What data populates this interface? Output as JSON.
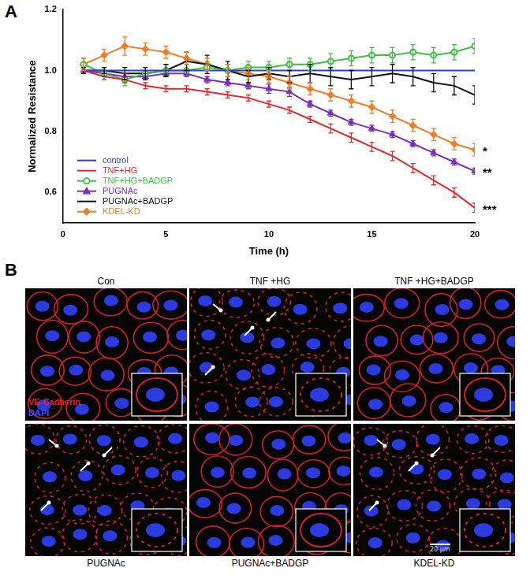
{
  "chart_data": {
    "type": "line",
    "x_label": "Time (h)",
    "y_label": "Normalized Resistance",
    "x": [
      1,
      2,
      3,
      4,
      5,
      6,
      7,
      8,
      9,
      10,
      11,
      12,
      13,
      14,
      15,
      16,
      17,
      18,
      19,
      20
    ],
    "xlim": [
      0,
      20
    ],
    "xticks": [
      0,
      5,
      10,
      15,
      20
    ],
    "ylim": [
      0.5,
      1.2
    ],
    "yticks": [
      0.6,
      0.8,
      {
        "value": 1,
        "label": "1.0"
      },
      1.2
    ],
    "grid": false,
    "legend": "lower left",
    "series": [
      {
        "name": "control",
        "color": "#2a3fd6",
        "marker": "none",
        "values": [
          1.0,
          1.0,
          1.0,
          1.0,
          1.0,
          1.0,
          1.0,
          1.0,
          1.0,
          1.0,
          1.0,
          1.0,
          1.0,
          1.0,
          1.0,
          1.0,
          1.0,
          1.0,
          1.0,
          1.0
        ],
        "errors": [
          0,
          0,
          0,
          0,
          0,
          0,
          0,
          0,
          0,
          0,
          0,
          0,
          0,
          0,
          0,
          0,
          0,
          0,
          0,
          0
        ]
      },
      {
        "name": "TNF+HG",
        "color": "#e8262a",
        "marker": "none",
        "annotation": "***",
        "values": [
          1.0,
          0.98,
          0.97,
          0.95,
          0.94,
          0.94,
          0.93,
          0.92,
          0.91,
          0.89,
          0.87,
          0.84,
          0.81,
          0.78,
          0.75,
          0.72,
          0.68,
          0.64,
          0.6,
          0.55
        ],
        "errors": [
          0.01,
          0.01,
          0.01,
          0.01,
          0.01,
          0.01,
          0.01,
          0.01,
          0.01,
          0.01,
          0.01,
          0.01,
          0.015,
          0.015,
          0.015,
          0.015,
          0.015,
          0.015,
          0.015,
          0.015
        ]
      },
      {
        "name": "TNF+HG+BADGP",
        "color": "#3fbf3f",
        "marker": "circle_open",
        "values": [
          1.02,
          0.99,
          0.97,
          0.99,
          1.0,
          1.0,
          1.01,
          1.0,
          1.01,
          1.01,
          1.02,
          1.02,
          1.03,
          1.04,
          1.05,
          1.05,
          1.06,
          1.05,
          1.06,
          1.08
        ],
        "errors": [
          0.02,
          0.02,
          0.02,
          0.02,
          0.02,
          0.02,
          0.02,
          0.02,
          0.02,
          0.02,
          0.02,
          0.02,
          0.025,
          0.025,
          0.025,
          0.025,
          0.025,
          0.025,
          0.025,
          0.025
        ]
      },
      {
        "name": "PUGNAc",
        "color": "#7b2fbe",
        "marker": "triangle",
        "annotation": "**",
        "values": [
          1.0,
          0.99,
          0.98,
          0.98,
          0.99,
          0.99,
          0.97,
          0.96,
          0.95,
          0.94,
          0.93,
          0.89,
          0.86,
          0.83,
          0.81,
          0.79,
          0.76,
          0.73,
          0.7,
          0.67
        ],
        "errors": [
          0.01,
          0.01,
          0.01,
          0.01,
          0.01,
          0.01,
          0.01,
          0.01,
          0.01,
          0.015,
          0.015,
          0.01,
          0.01,
          0.01,
          0.01,
          0.01,
          0.01,
          0.01,
          0.01,
          0.01
        ]
      },
      {
        "name": "PUGNAc+BADGP",
        "color": "#111111",
        "marker": "none",
        "values": [
          1.0,
          1.0,
          0.99,
          0.99,
          1.0,
          1.03,
          1.02,
          1.0,
          0.98,
          0.99,
          0.98,
          0.99,
          0.98,
          0.97,
          0.98,
          0.99,
          0.98,
          0.96,
          0.95,
          0.92
        ],
        "errors": [
          0.01,
          0.01,
          0.02,
          0.02,
          0.02,
          0.03,
          0.03,
          0.03,
          0.02,
          0.02,
          0.02,
          0.03,
          0.03,
          0.03,
          0.03,
          0.03,
          0.03,
          0.03,
          0.03,
          0.03
        ]
      },
      {
        "name": "KDEL-KD",
        "color": "#f07d28",
        "marker": "diamond",
        "annotation": "*",
        "values": [
          1.02,
          1.05,
          1.08,
          1.07,
          1.06,
          1.04,
          1.02,
          1.0,
          0.99,
          0.98,
          0.96,
          0.94,
          0.92,
          0.9,
          0.88,
          0.85,
          0.82,
          0.79,
          0.76,
          0.74
        ],
        "errors": [
          0.02,
          0.02,
          0.03,
          0.02,
          0.02,
          0.02,
          0.02,
          0.02,
          0.02,
          0.02,
          0.02,
          0.02,
          0.02,
          0.02,
          0.02,
          0.02,
          0.02,
          0.02,
          0.02,
          0.02
        ]
      }
    ]
  },
  "panel_labels": [
    "A",
    "B"
  ],
  "image_panel": {
    "titles": [
      "Con",
      "TNF +HG",
      "TNF +HG+BADGP",
      "PUGNAc",
      "PUGNAc+BADGP",
      "KDEL-KD"
    ],
    "stains": [
      "VE-Cadherin",
      "DAPI"
    ],
    "scale_bar": "20 μm"
  }
}
